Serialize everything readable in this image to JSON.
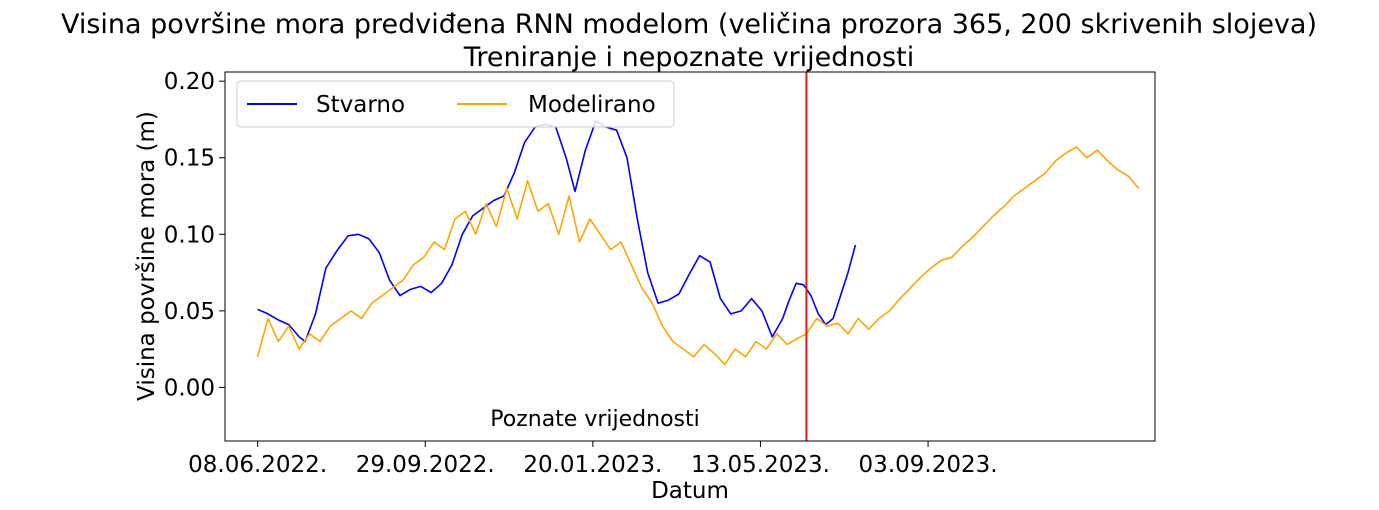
{
  "colors": {
    "background": "#ffffff",
    "axes": "#000000",
    "split_line": "#e41a1c"
  },
  "chart_data": {
    "type": "line",
    "title": "Visina površine mora predviđena RNN modelom (veličina prozora 365, 200 skrivenih slojeva)",
    "subtitle": "Treniranje i nepoznate vrijednosti",
    "xlabel": "Datum",
    "ylabel": "Visina površine mora (m)",
    "x_axis": "dates",
    "xlim": [
      "2022-05-17",
      "2024-02-03"
    ],
    "ylim": [
      -0.035,
      0.206
    ],
    "grid": false,
    "legend_position": "top-left",
    "x_ticks": [
      {
        "date": "2022-06-08",
        "label": "08.06.2022."
      },
      {
        "date": "2022-09-29",
        "label": "29.09.2022."
      },
      {
        "date": "2023-01-20",
        "label": "20.01.2023."
      },
      {
        "date": "2023-05-13",
        "label": "13.05.2023."
      },
      {
        "date": "2023-09-03",
        "label": "03.09.2023."
      }
    ],
    "y_ticks": [
      {
        "value": 0.0,
        "label": "0.00"
      },
      {
        "value": 0.05,
        "label": "0.05"
      },
      {
        "value": 0.1,
        "label": "0.10"
      },
      {
        "value": 0.15,
        "label": "0.15"
      },
      {
        "value": 0.2,
        "label": "0.20"
      }
    ],
    "split": {
      "date": "2023-06-13",
      "annotation": "Poznate vrijednosti",
      "annotation_position": "bottom-center"
    },
    "series": [
      {
        "name": "Stvarno",
        "color": "#0000ff",
        "points": [
          [
            "2022-06-08",
            0.051
          ],
          [
            "2022-06-15",
            0.048
          ],
          [
            "2022-06-22",
            0.044
          ],
          [
            "2022-06-29",
            0.041
          ],
          [
            "2022-07-06",
            0.033
          ],
          [
            "2022-07-10",
            0.03
          ],
          [
            "2022-07-17",
            0.048
          ],
          [
            "2022-07-24",
            0.078
          ],
          [
            "2022-08-01",
            0.09
          ],
          [
            "2022-08-08",
            0.099
          ],
          [
            "2022-08-15",
            0.1
          ],
          [
            "2022-08-22",
            0.097
          ],
          [
            "2022-08-29",
            0.088
          ],
          [
            "2022-09-05",
            0.07
          ],
          [
            "2022-09-12",
            0.06
          ],
          [
            "2022-09-19",
            0.064
          ],
          [
            "2022-09-26",
            0.066
          ],
          [
            "2022-10-03",
            0.062
          ],
          [
            "2022-10-10",
            0.068
          ],
          [
            "2022-10-17",
            0.08
          ],
          [
            "2022-10-24",
            0.1
          ],
          [
            "2022-10-31",
            0.112
          ],
          [
            "2022-11-07",
            0.117
          ],
          [
            "2022-11-14",
            0.122
          ],
          [
            "2022-11-21",
            0.125
          ],
          [
            "2022-11-28",
            0.14
          ],
          [
            "2022-12-05",
            0.16
          ],
          [
            "2022-12-12",
            0.17
          ],
          [
            "2022-12-19",
            0.172
          ],
          [
            "2022-12-26",
            0.17
          ],
          [
            "2023-01-02",
            0.15
          ],
          [
            "2023-01-08",
            0.128
          ],
          [
            "2023-01-15",
            0.155
          ],
          [
            "2023-01-22",
            0.174
          ],
          [
            "2023-01-29",
            0.17
          ],
          [
            "2023-02-05",
            0.168
          ],
          [
            "2023-02-12",
            0.15
          ],
          [
            "2023-02-19",
            0.11
          ],
          [
            "2023-02-26",
            0.075
          ],
          [
            "2023-03-05",
            0.055
          ],
          [
            "2023-03-12",
            0.057
          ],
          [
            "2023-03-19",
            0.061
          ],
          [
            "2023-03-26",
            0.074
          ],
          [
            "2023-04-02",
            0.086
          ],
          [
            "2023-04-09",
            0.082
          ],
          [
            "2023-04-16",
            0.058
          ],
          [
            "2023-04-23",
            0.048
          ],
          [
            "2023-04-30",
            0.05
          ],
          [
            "2023-05-07",
            0.058
          ],
          [
            "2023-05-14",
            0.05
          ],
          [
            "2023-05-21",
            0.033
          ],
          [
            "2023-05-28",
            0.045
          ],
          [
            "2023-06-01",
            0.056
          ],
          [
            "2023-06-06",
            0.068
          ],
          [
            "2023-06-11",
            0.067
          ],
          [
            "2023-06-16",
            0.06
          ],
          [
            "2023-06-21",
            0.048
          ],
          [
            "2023-06-26",
            0.041
          ],
          [
            "2023-07-01",
            0.045
          ],
          [
            "2023-07-06",
            0.06
          ],
          [
            "2023-07-11",
            0.075
          ],
          [
            "2023-07-16",
            0.093
          ]
        ]
      },
      {
        "name": "Modelirano",
        "color": "#ffa500",
        "points": [
          [
            "2022-06-08",
            0.02
          ],
          [
            "2022-06-15",
            0.045
          ],
          [
            "2022-06-22",
            0.03
          ],
          [
            "2022-06-29",
            0.04
          ],
          [
            "2022-07-06",
            0.025
          ],
          [
            "2022-07-13",
            0.035
          ],
          [
            "2022-07-20",
            0.03
          ],
          [
            "2022-07-27",
            0.04
          ],
          [
            "2022-08-03",
            0.045
          ],
          [
            "2022-08-10",
            0.05
          ],
          [
            "2022-08-17",
            0.045
          ],
          [
            "2022-08-24",
            0.055
          ],
          [
            "2022-08-31",
            0.06
          ],
          [
            "2022-09-07",
            0.065
          ],
          [
            "2022-09-14",
            0.07
          ],
          [
            "2022-09-21",
            0.08
          ],
          [
            "2022-09-28",
            0.085
          ],
          [
            "2022-10-05",
            0.095
          ],
          [
            "2022-10-12",
            0.09
          ],
          [
            "2022-10-19",
            0.11
          ],
          [
            "2022-10-26",
            0.115
          ],
          [
            "2022-11-02",
            0.1
          ],
          [
            "2022-11-09",
            0.12
          ],
          [
            "2022-11-16",
            0.105
          ],
          [
            "2022-11-23",
            0.13
          ],
          [
            "2022-11-30",
            0.11
          ],
          [
            "2022-12-07",
            0.135
          ],
          [
            "2022-12-14",
            0.115
          ],
          [
            "2022-12-21",
            0.12
          ],
          [
            "2022-12-28",
            0.1
          ],
          [
            "2023-01-04",
            0.125
          ],
          [
            "2023-01-11",
            0.095
          ],
          [
            "2023-01-18",
            0.11
          ],
          [
            "2023-01-25",
            0.1
          ],
          [
            "2023-02-01",
            0.09
          ],
          [
            "2023-02-08",
            0.095
          ],
          [
            "2023-02-15",
            0.08
          ],
          [
            "2023-02-22",
            0.065
          ],
          [
            "2023-03-01",
            0.055
          ],
          [
            "2023-03-08",
            0.04
          ],
          [
            "2023-03-15",
            0.03
          ],
          [
            "2023-03-22",
            0.025
          ],
          [
            "2023-03-29",
            0.02
          ],
          [
            "2023-04-05",
            0.028
          ],
          [
            "2023-04-12",
            0.022
          ],
          [
            "2023-04-19",
            0.015
          ],
          [
            "2023-04-26",
            0.025
          ],
          [
            "2023-05-03",
            0.02
          ],
          [
            "2023-05-10",
            0.03
          ],
          [
            "2023-05-17",
            0.025
          ],
          [
            "2023-05-24",
            0.035
          ],
          [
            "2023-05-31",
            0.028
          ],
          [
            "2023-06-07",
            0.032
          ],
          [
            "2023-06-13",
            0.035
          ],
          [
            "2023-06-20",
            0.045
          ],
          [
            "2023-06-27",
            0.04
          ],
          [
            "2023-07-04",
            0.042
          ],
          [
            "2023-07-11",
            0.035
          ],
          [
            "2023-07-18",
            0.045
          ],
          [
            "2023-07-25",
            0.038
          ],
          [
            "2023-08-01",
            0.045
          ],
          [
            "2023-08-08",
            0.05
          ],
          [
            "2023-08-15",
            0.058
          ],
          [
            "2023-08-22",
            0.065
          ],
          [
            "2023-08-29",
            0.072
          ],
          [
            "2023-09-05",
            0.078
          ],
          [
            "2023-09-12",
            0.083
          ],
          [
            "2023-09-19",
            0.085
          ],
          [
            "2023-09-26",
            0.092
          ],
          [
            "2023-10-03",
            0.098
          ],
          [
            "2023-10-10",
            0.105
          ],
          [
            "2023-10-17",
            0.112
          ],
          [
            "2023-10-24",
            0.118
          ],
          [
            "2023-10-31",
            0.125
          ],
          [
            "2023-11-07",
            0.13
          ],
          [
            "2023-11-14",
            0.135
          ],
          [
            "2023-11-21",
            0.14
          ],
          [
            "2023-11-28",
            0.148
          ],
          [
            "2023-12-05",
            0.153
          ],
          [
            "2023-12-12",
            0.157
          ],
          [
            "2023-12-19",
            0.15
          ],
          [
            "2023-12-26",
            0.155
          ],
          [
            "2024-01-02",
            0.148
          ],
          [
            "2024-01-09",
            0.142
          ],
          [
            "2024-01-16",
            0.138
          ],
          [
            "2024-01-23",
            0.13
          ]
        ]
      }
    ]
  }
}
